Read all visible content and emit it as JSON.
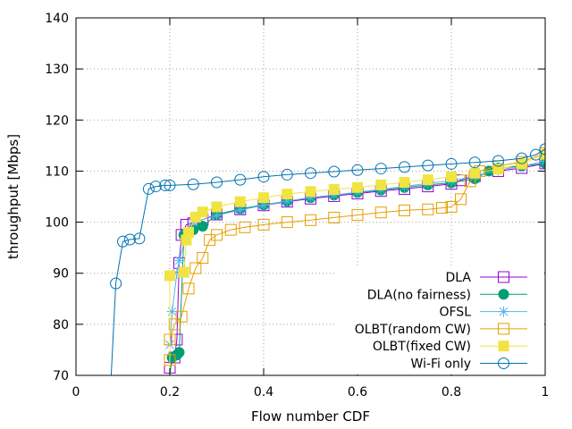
{
  "chart_data": {
    "type": "line",
    "xlabel": "Flow number CDF",
    "ylabel": "throughput [Mbps]",
    "xlim": [
      0,
      1
    ],
    "ylim": [
      70,
      140
    ],
    "xticks": [
      0,
      0.2,
      0.4,
      0.6,
      0.8,
      1
    ],
    "xtick_labels": [
      "0",
      "0.2",
      "0.4",
      "0.6",
      "0.8",
      "1"
    ],
    "yticks": [
      70,
      80,
      90,
      100,
      110,
      120,
      130,
      140
    ],
    "ytick_labels": [
      "70",
      "80",
      "90",
      "100",
      "110",
      "120",
      "130",
      "140"
    ],
    "grid": true,
    "legend_position": "bottom-right",
    "series": [
      {
        "name": "DLA",
        "color": "#9400d3",
        "marker": "square-open",
        "points": [
          [
            0.2,
            70
          ],
          [
            0.2,
            71.5
          ],
          [
            0.21,
            73.5
          ],
          [
            0.215,
            77
          ],
          [
            0.22,
            92
          ],
          [
            0.225,
            97.5
          ],
          [
            0.235,
            99.5
          ],
          [
            0.25,
            99.8
          ],
          [
            0.27,
            100.5
          ],
          [
            0.3,
            101.5
          ],
          [
            0.35,
            102.5
          ],
          [
            0.4,
            103.3
          ],
          [
            0.45,
            104
          ],
          [
            0.5,
            104.6
          ],
          [
            0.55,
            105.1
          ],
          [
            0.6,
            105.6
          ],
          [
            0.65,
            106.1
          ],
          [
            0.7,
            106.5
          ],
          [
            0.75,
            107
          ],
          [
            0.8,
            107.5
          ],
          [
            0.82,
            108.2
          ],
          [
            0.85,
            109
          ],
          [
            0.9,
            110
          ],
          [
            0.95,
            110.6
          ],
          [
            1,
            111.5
          ]
        ]
      },
      {
        "name": "DLA(no fairness)",
        "color": "#009e73",
        "marker": "circle-filled",
        "points": [
          [
            0.2,
            70
          ],
          [
            0.205,
            73.5
          ],
          [
            0.215,
            74
          ],
          [
            0.22,
            74.5
          ],
          [
            0.23,
            97.5
          ],
          [
            0.25,
            98.5
          ],
          [
            0.27,
            99.2
          ],
          [
            0.3,
            101.5
          ],
          [
            0.35,
            102.6
          ],
          [
            0.4,
            103.4
          ],
          [
            0.45,
            104.1
          ],
          [
            0.5,
            104.8
          ],
          [
            0.55,
            105.3
          ],
          [
            0.6,
            105.8
          ],
          [
            0.65,
            106.3
          ],
          [
            0.7,
            106.8
          ],
          [
            0.75,
            107.3
          ],
          [
            0.8,
            107.7
          ],
          [
            0.85,
            108.5
          ],
          [
            0.88,
            110
          ],
          [
            0.9,
            110.6
          ],
          [
            0.95,
            111
          ],
          [
            1,
            111.5
          ]
        ]
      },
      {
        "name": "OFSL",
        "color": "#56b4e9",
        "marker": "star",
        "points": [
          [
            0.2,
            70
          ],
          [
            0.2,
            76
          ],
          [
            0.205,
            82.5
          ],
          [
            0.215,
            90
          ],
          [
            0.22,
            92.5
          ],
          [
            0.235,
            97.5
          ],
          [
            0.25,
            100
          ],
          [
            0.3,
            101.3
          ],
          [
            0.35,
            102.4
          ],
          [
            0.4,
            103.3
          ],
          [
            0.45,
            104.1
          ],
          [
            0.5,
            104.8
          ],
          [
            0.55,
            105.3
          ],
          [
            0.6,
            105.9
          ],
          [
            0.65,
            106.4
          ],
          [
            0.7,
            107
          ],
          [
            0.75,
            107.6
          ],
          [
            0.8,
            108.1
          ],
          [
            0.85,
            109
          ],
          [
            0.9,
            110.2
          ],
          [
            0.95,
            110.9
          ],
          [
            1,
            112
          ]
        ]
      },
      {
        "name": "OLBT(random CW)",
        "color": "#e69f00",
        "marker": "square-open",
        "points": [
          [
            0.2,
            70
          ],
          [
            0.2,
            73
          ],
          [
            0.2,
            77
          ],
          [
            0.21,
            80
          ],
          [
            0.225,
            81.5
          ],
          [
            0.24,
            87
          ],
          [
            0.255,
            91
          ],
          [
            0.27,
            93
          ],
          [
            0.285,
            96.5
          ],
          [
            0.3,
            97.5
          ],
          [
            0.33,
            98.5
          ],
          [
            0.36,
            99
          ],
          [
            0.4,
            99.5
          ],
          [
            0.45,
            100
          ],
          [
            0.5,
            100.4
          ],
          [
            0.55,
            100.9
          ],
          [
            0.6,
            101.4
          ],
          [
            0.65,
            101.9
          ],
          [
            0.7,
            102.3
          ],
          [
            0.75,
            102.5
          ],
          [
            0.78,
            102.8
          ],
          [
            0.8,
            103
          ],
          [
            0.82,
            104.5
          ],
          [
            0.84,
            108
          ],
          [
            0.86,
            110
          ],
          [
            0.9,
            111
          ],
          [
            0.95,
            111.8
          ],
          [
            1,
            113.5
          ]
        ]
      },
      {
        "name": "OLBT(fixed CW)",
        "color": "#f0e442",
        "marker": "square-filled",
        "points": [
          [
            0.2,
            70
          ],
          [
            0.2,
            89.5
          ],
          [
            0.23,
            90.2
          ],
          [
            0.235,
            96.5
          ],
          [
            0.24,
            98
          ],
          [
            0.255,
            101
          ],
          [
            0.27,
            102
          ],
          [
            0.3,
            103
          ],
          [
            0.35,
            104
          ],
          [
            0.4,
            104.8
          ],
          [
            0.45,
            105.5
          ],
          [
            0.5,
            106
          ],
          [
            0.55,
            106.4
          ],
          [
            0.6,
            106.8
          ],
          [
            0.65,
            107.3
          ],
          [
            0.7,
            107.8
          ],
          [
            0.75,
            108.3
          ],
          [
            0.8,
            108.9
          ],
          [
            0.85,
            109.6
          ],
          [
            0.9,
            110.4
          ],
          [
            0.95,
            111.4
          ],
          [
            1,
            113.3
          ]
        ]
      },
      {
        "name": "Wi-Fi only",
        "color": "#0072b2",
        "marker": "circle-open",
        "points": [
          [
            0.075,
            70
          ],
          [
            0.085,
            88
          ],
          [
            0.1,
            96.2
          ],
          [
            0.115,
            96.6
          ],
          [
            0.135,
            96.8
          ],
          [
            0.155,
            106.5
          ],
          [
            0.17,
            107
          ],
          [
            0.19,
            107.2
          ],
          [
            0.2,
            107.2
          ],
          [
            0.25,
            107.4
          ],
          [
            0.3,
            107.8
          ],
          [
            0.35,
            108.3
          ],
          [
            0.4,
            108.9
          ],
          [
            0.45,
            109.3
          ],
          [
            0.5,
            109.6
          ],
          [
            0.55,
            109.9
          ],
          [
            0.6,
            110.2
          ],
          [
            0.65,
            110.5
          ],
          [
            0.7,
            110.8
          ],
          [
            0.75,
            111.1
          ],
          [
            0.8,
            111.4
          ],
          [
            0.85,
            111.7
          ],
          [
            0.9,
            112
          ],
          [
            0.95,
            112.5
          ],
          [
            0.98,
            113.2
          ],
          [
            1,
            114.3
          ]
        ]
      }
    ]
  }
}
